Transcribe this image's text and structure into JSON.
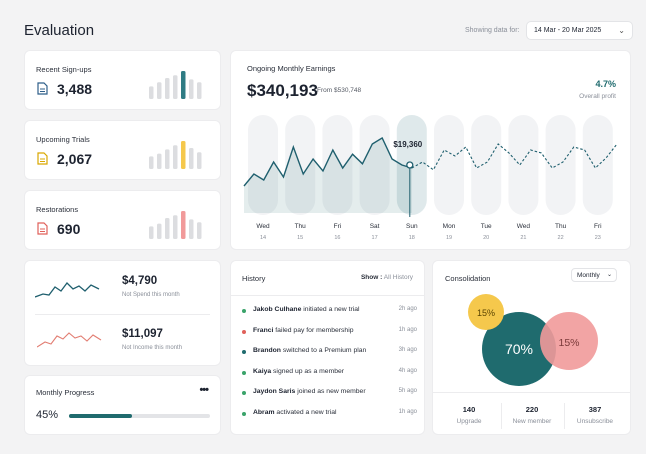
{
  "header": {
    "title": "Evaluation",
    "showing_label": "Showing data for:",
    "date_range": "14 Mar - 20 Mar 2025"
  },
  "stats": [
    {
      "label": "Recent Sign-ups",
      "value": "3,488",
      "icon": "document-icon",
      "accent": "#2f7c84",
      "bars": [
        0.45,
        0.6,
        0.75,
        0.85,
        1.0,
        0.7,
        0.6
      ],
      "highlight": 4
    },
    {
      "label": "Upcoming Trials",
      "value": "2,067",
      "icon": "document-icon",
      "accent": "#f5c84c",
      "bars": [
        0.45,
        0.55,
        0.7,
        0.85,
        1.0,
        0.75,
        0.6
      ],
      "highlight": 4
    },
    {
      "label": "Restorations",
      "value": "690",
      "icon": "document-icon",
      "accent": "#f19a9a",
      "bars": [
        0.45,
        0.55,
        0.75,
        0.85,
        1.0,
        0.7,
        0.6
      ],
      "highlight": 4
    }
  ],
  "earnings": {
    "title": "Ongoing Monthly Earnings",
    "value": "$340,193",
    "from": "From $530,748",
    "pct": "4.7%",
    "pct_label": "Overall profit",
    "tooltip": "$19,360",
    "days": [
      {
        "day": "Wed",
        "date": "14"
      },
      {
        "day": "Thu",
        "date": "15"
      },
      {
        "day": "Fri",
        "date": "16"
      },
      {
        "day": "Sat",
        "date": "17"
      },
      {
        "day": "Sun",
        "date": "18"
      },
      {
        "day": "Mon",
        "date": "19"
      },
      {
        "day": "Tue",
        "date": "20"
      },
      {
        "day": "Wed",
        "date": "21"
      },
      {
        "day": "Thu",
        "date": "22"
      },
      {
        "day": "Fri",
        "date": "23"
      }
    ],
    "actual_line": [
      0.15,
      0.35,
      0.25,
      0.55,
      0.3,
      0.8,
      0.35,
      0.6,
      0.4,
      0.75,
      0.45,
      0.68,
      0.52,
      0.85,
      0.95,
      0.6,
      0.5,
      0.45
    ],
    "forecast_line": [
      0.45,
      0.55,
      0.42,
      0.75,
      0.65,
      0.8,
      0.45,
      0.55,
      0.85,
      0.7,
      0.5,
      0.75,
      0.7,
      0.45,
      0.55,
      0.8,
      0.75,
      0.45,
      0.62,
      0.85
    ]
  },
  "spend": {
    "spend_value": "$4,790",
    "spend_label": "Not Spend this month",
    "income_value": "$11,097",
    "income_label": "Not Income this month"
  },
  "progress": {
    "title": "Monthly Progress",
    "more": "•••",
    "pct_label": "45%",
    "value": 0.45
  },
  "history": {
    "title": "History",
    "show_label": "Show :",
    "show_value": "All History",
    "items": [
      {
        "name": "Jakob Culhane",
        "action": "initiated a new trial",
        "time": "2h ago",
        "color": "#3aa36a"
      },
      {
        "name": "Franci",
        "action": "failed pay for membership",
        "time": "1h ago",
        "color": "#e0605a"
      },
      {
        "name": "Brandon",
        "action": "switched to a Premium plan",
        "time": "3h ago",
        "color": "#1f6b6e"
      },
      {
        "name": "Kaiya",
        "action": "signed up as a member",
        "time": "4h ago",
        "color": "#3aa36a"
      },
      {
        "name": "Jaydon Saris",
        "action": "joined as new member",
        "time": "5h ago",
        "color": "#3aa36a"
      },
      {
        "name": "Abram",
        "action": "activated a new trial",
        "time": "1h ago",
        "color": "#3aa36a"
      }
    ]
  },
  "consolidation": {
    "title": "Consolidation",
    "period": "Monthly",
    "bubbles": [
      {
        "label": "70%",
        "color": "#1f6b6e"
      },
      {
        "label": "15%",
        "color": "#f5c84c"
      },
      {
        "label": "15%",
        "color": "#f19a9a"
      }
    ],
    "stats": [
      {
        "value": "140",
        "label": "Upgrade"
      },
      {
        "value": "220",
        "label": "New member"
      },
      {
        "value": "387",
        "label": "Unsubscribe"
      }
    ]
  }
}
